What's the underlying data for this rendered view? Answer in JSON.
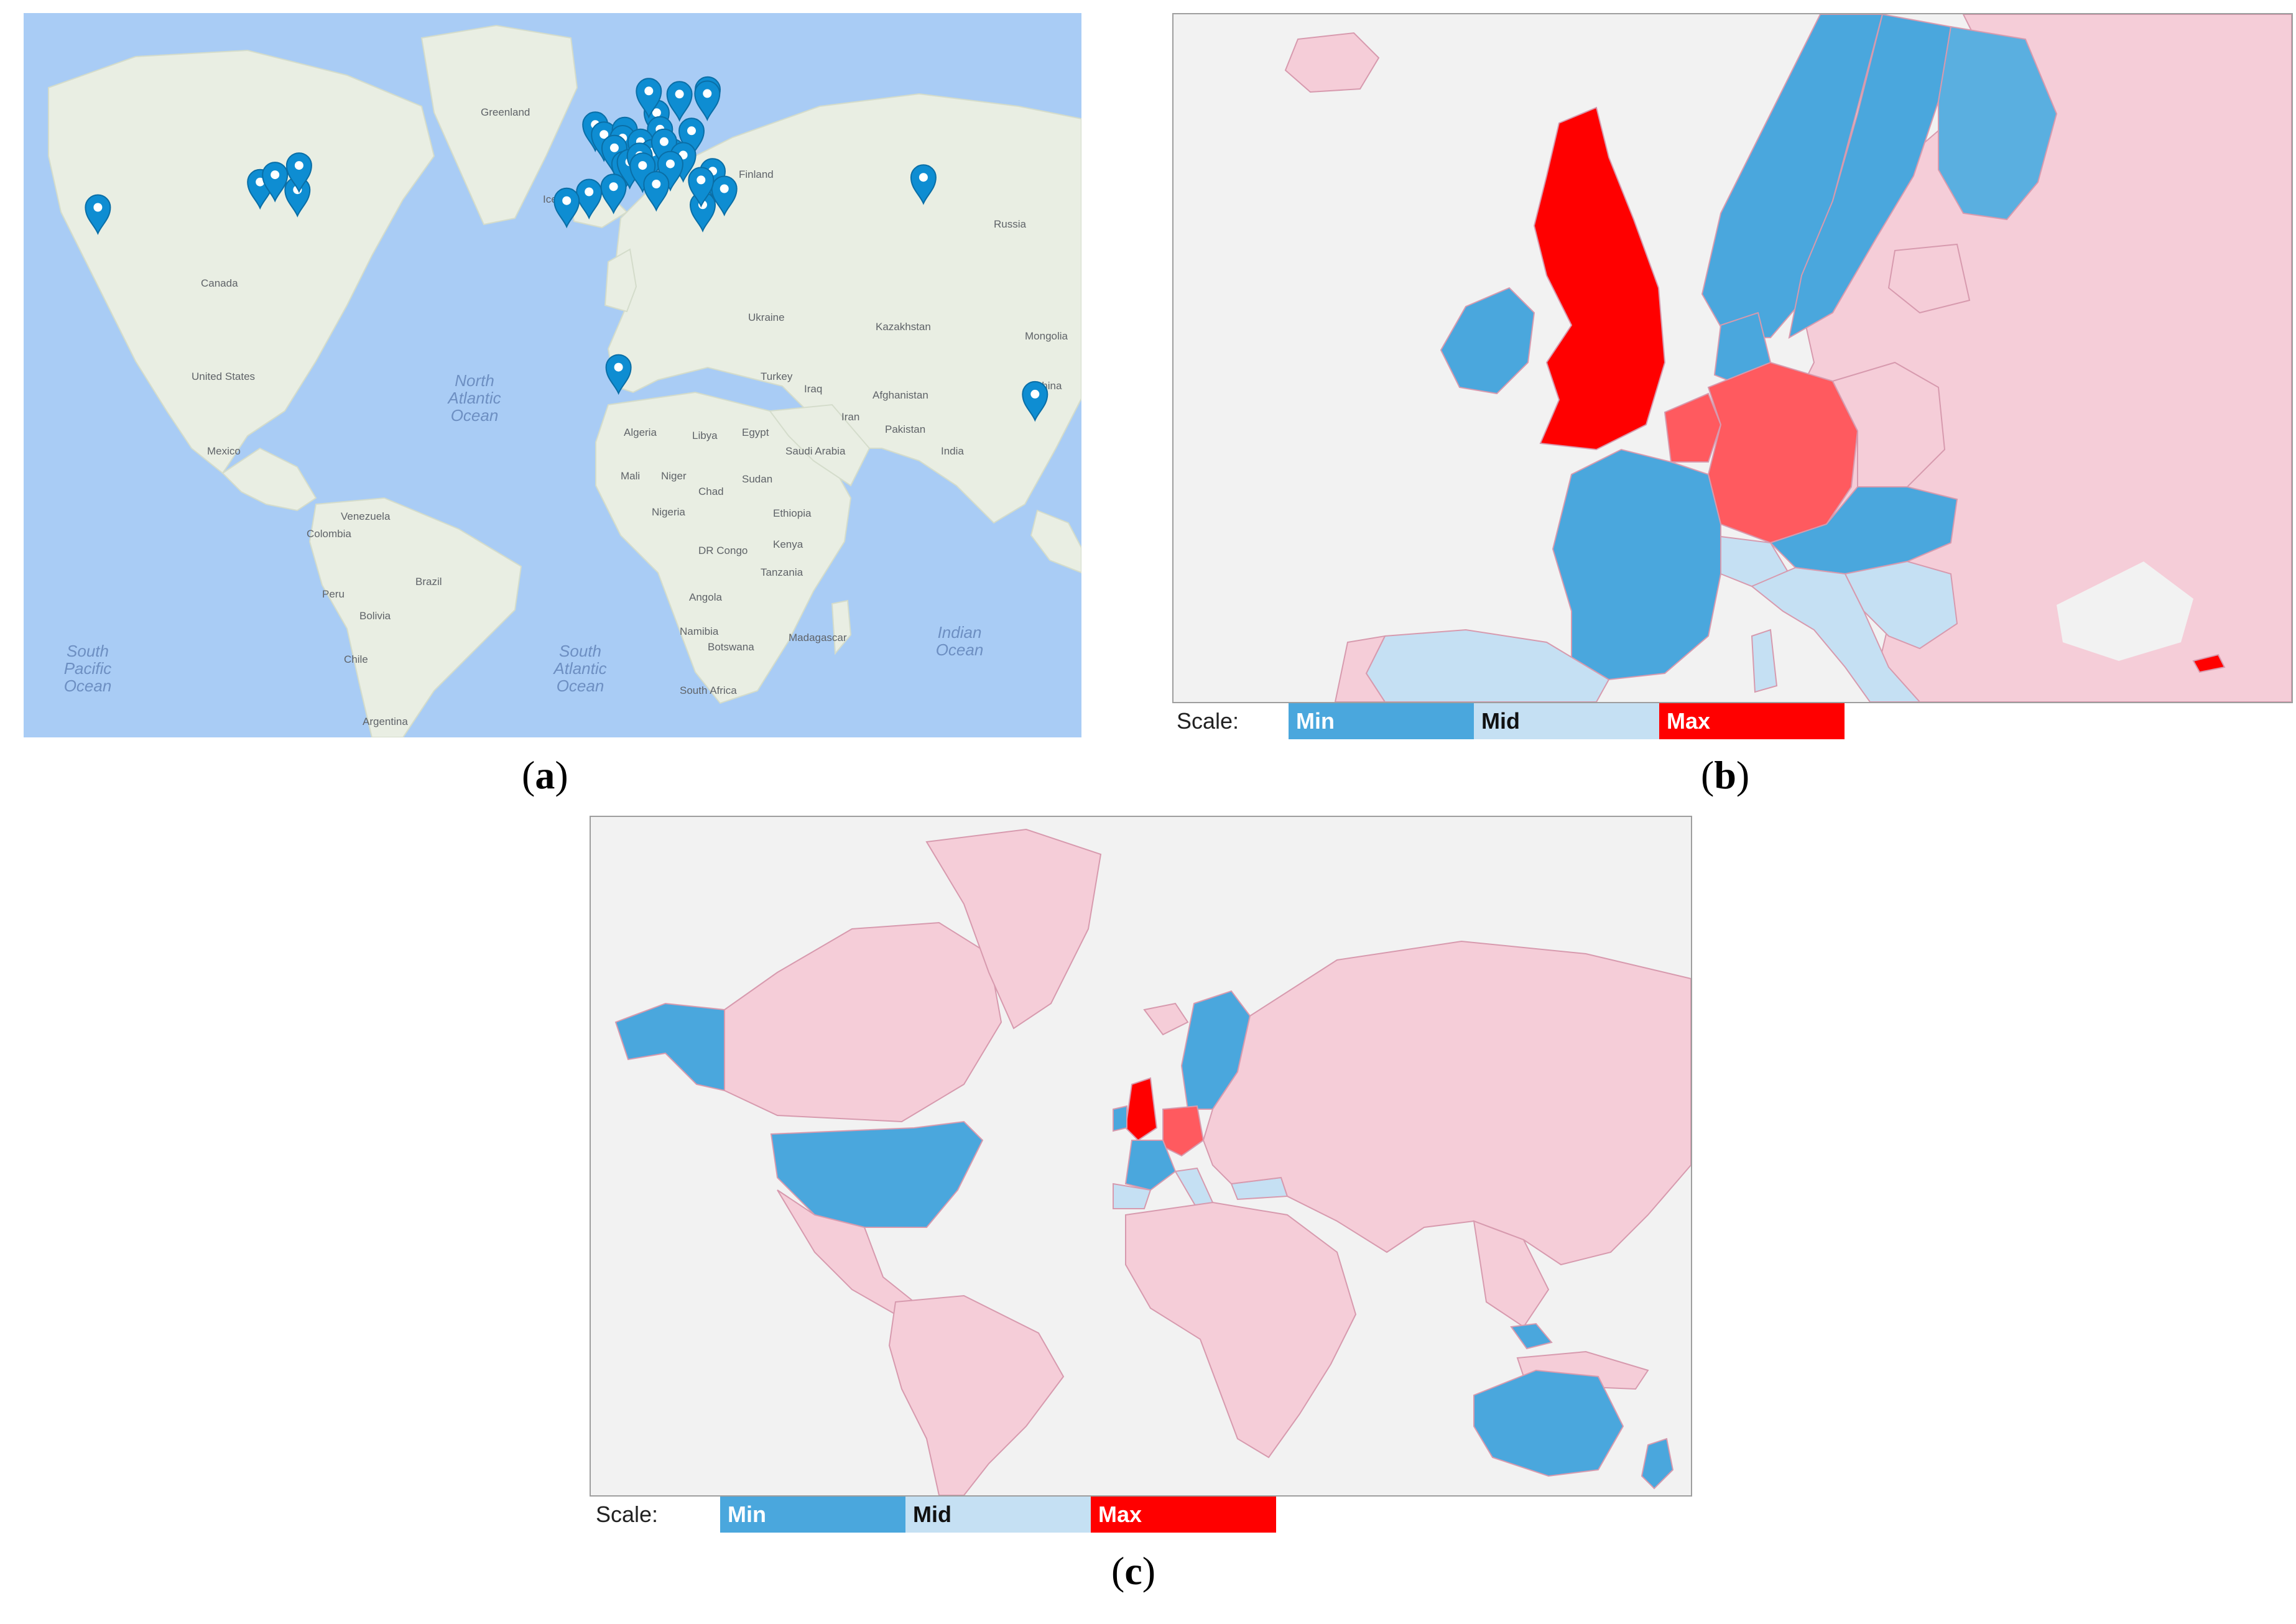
{
  "captions": {
    "a": "a",
    "b": "b",
    "c": "c"
  },
  "colors": {
    "ocean": "#a9ccf5",
    "land": "#e9eee3",
    "marker": "#0e8dd2",
    "min": "#4aa7dd",
    "mid": "#c5e0f3",
    "max": "#ff0000",
    "high": "#ff5a5f",
    "none": "#f5cdd8",
    "background": "#f2f2f2"
  },
  "panel_a": {
    "labels": {
      "greenland": "Greenland",
      "iceland": "Iceland",
      "finland": "Finland",
      "russia": "Russia",
      "canada": "Canada",
      "united_states": "United States",
      "mexico": "Mexico",
      "venezuela": "Venezuela",
      "colombia": "Colombia",
      "brazil": "Brazil",
      "peru": "Peru",
      "bolivia": "Bolivia",
      "chile": "Chile",
      "argentina": "Argentina",
      "algeria": "Algeria",
      "libya": "Libya",
      "egypt": "Egypt",
      "mali": "Mali",
      "niger": "Niger",
      "chad": "Chad",
      "sudan": "Sudan",
      "nigeria": "Nigeria",
      "ethiopia": "Ethiopia",
      "dr_congo": "DR Congo",
      "kenya": "Kenya",
      "tanzania": "Tanzania",
      "angola": "Angola",
      "namibia": "Namibia",
      "botswana": "Botswana",
      "madagascar": "Madagascar",
      "south_africa": "South Africa",
      "saudi_arabia": "Saudi Arabia",
      "iran": "Iran",
      "iraq": "Iraq",
      "afghanistan": "Afghanistan",
      "pakistan": "Pakistan",
      "india": "India",
      "kazakhstan": "Kazakhstan",
      "mongolia": "Mongolia",
      "china": "China",
      "turkey": "Turkey",
      "ukraine": "Ukraine",
      "north_atlantic_1": "North",
      "north_atlantic_2": "Atlantic",
      "north_atlantic_3": "Ocean",
      "south_pacific_1": "South",
      "south_pacific_2": "Pacific",
      "south_pacific_3": "Ocean",
      "south_atlantic_1": "South",
      "south_atlantic_2": "Atlantic",
      "south_atlantic_3": "Ocean",
      "indian_1": "Indian",
      "indian_2": "Ocean"
    },
    "markers": [
      {
        "lat": 37.4,
        "lon": -122.1
      },
      {
        "lat": 42.3,
        "lon": -83.0
      },
      {
        "lat": 40.8,
        "lon": -74.0
      },
      {
        "lat": 43.7,
        "lon": -79.4
      },
      {
        "lat": 45.5,
        "lon": -73.6
      },
      {
        "lat": 53.4,
        "lon": -2.2
      },
      {
        "lat": 51.5,
        "lon": -0.1
      },
      {
        "lat": 52.4,
        "lon": 4.9
      },
      {
        "lat": 50.8,
        "lon": 4.4
      },
      {
        "lat": 55.7,
        "lon": 12.6
      },
      {
        "lat": 59.9,
        "lon": 10.7
      },
      {
        "lat": 59.3,
        "lon": 18.1
      },
      {
        "lat": 60.2,
        "lon": 24.9
      },
      {
        "lat": 59.4,
        "lon": 24.8
      },
      {
        "lat": 52.5,
        "lon": 13.4
      },
      {
        "lat": 50.1,
        "lon": 8.7
      },
      {
        "lat": 48.1,
        "lon": 11.6
      },
      {
        "lat": 48.9,
        "lon": 2.4
      },
      {
        "lat": 45.8,
        "lon": 4.8
      },
      {
        "lat": 46.2,
        "lon": 6.1
      },
      {
        "lat": 47.4,
        "lon": 8.5
      },
      {
        "lat": 48.2,
        "lon": 16.4
      },
      {
        "lat": 50.1,
        "lon": 14.4
      },
      {
        "lat": 52.2,
        "lon": 21.0
      },
      {
        "lat": 47.5,
        "lon": 19.0
      },
      {
        "lat": 45.8,
        "lon": 15.9
      },
      {
        "lat": 45.5,
        "lon": 9.2
      },
      {
        "lat": 41.9,
        "lon": 12.5
      },
      {
        "lat": 40.4,
        "lon": -3.7
      },
      {
        "lat": 41.4,
        "lon": 2.2
      },
      {
        "lat": 38.7,
        "lon": -9.1
      },
      {
        "lat": 37.9,
        "lon": 23.7
      },
      {
        "lat": 44.4,
        "lon": 26.1
      },
      {
        "lat": 41.0,
        "lon": 28.9
      },
      {
        "lat": 42.7,
        "lon": 23.3
      },
      {
        "lat": 6.5,
        "lon": 3.4
      },
      {
        "lat": 43.2,
        "lon": 76.9
      },
      {
        "lat": 1.3,
        "lon": 103.8
      }
    ]
  },
  "panel_b": {
    "scale_label": "Scale:",
    "scale_min": "Min",
    "scale_mid": "Mid",
    "scale_max": "Max"
  },
  "panel_c": {
    "scale_label": "Scale:",
    "scale_min": "Min",
    "scale_mid": "Mid",
    "scale_max": "Max"
  }
}
